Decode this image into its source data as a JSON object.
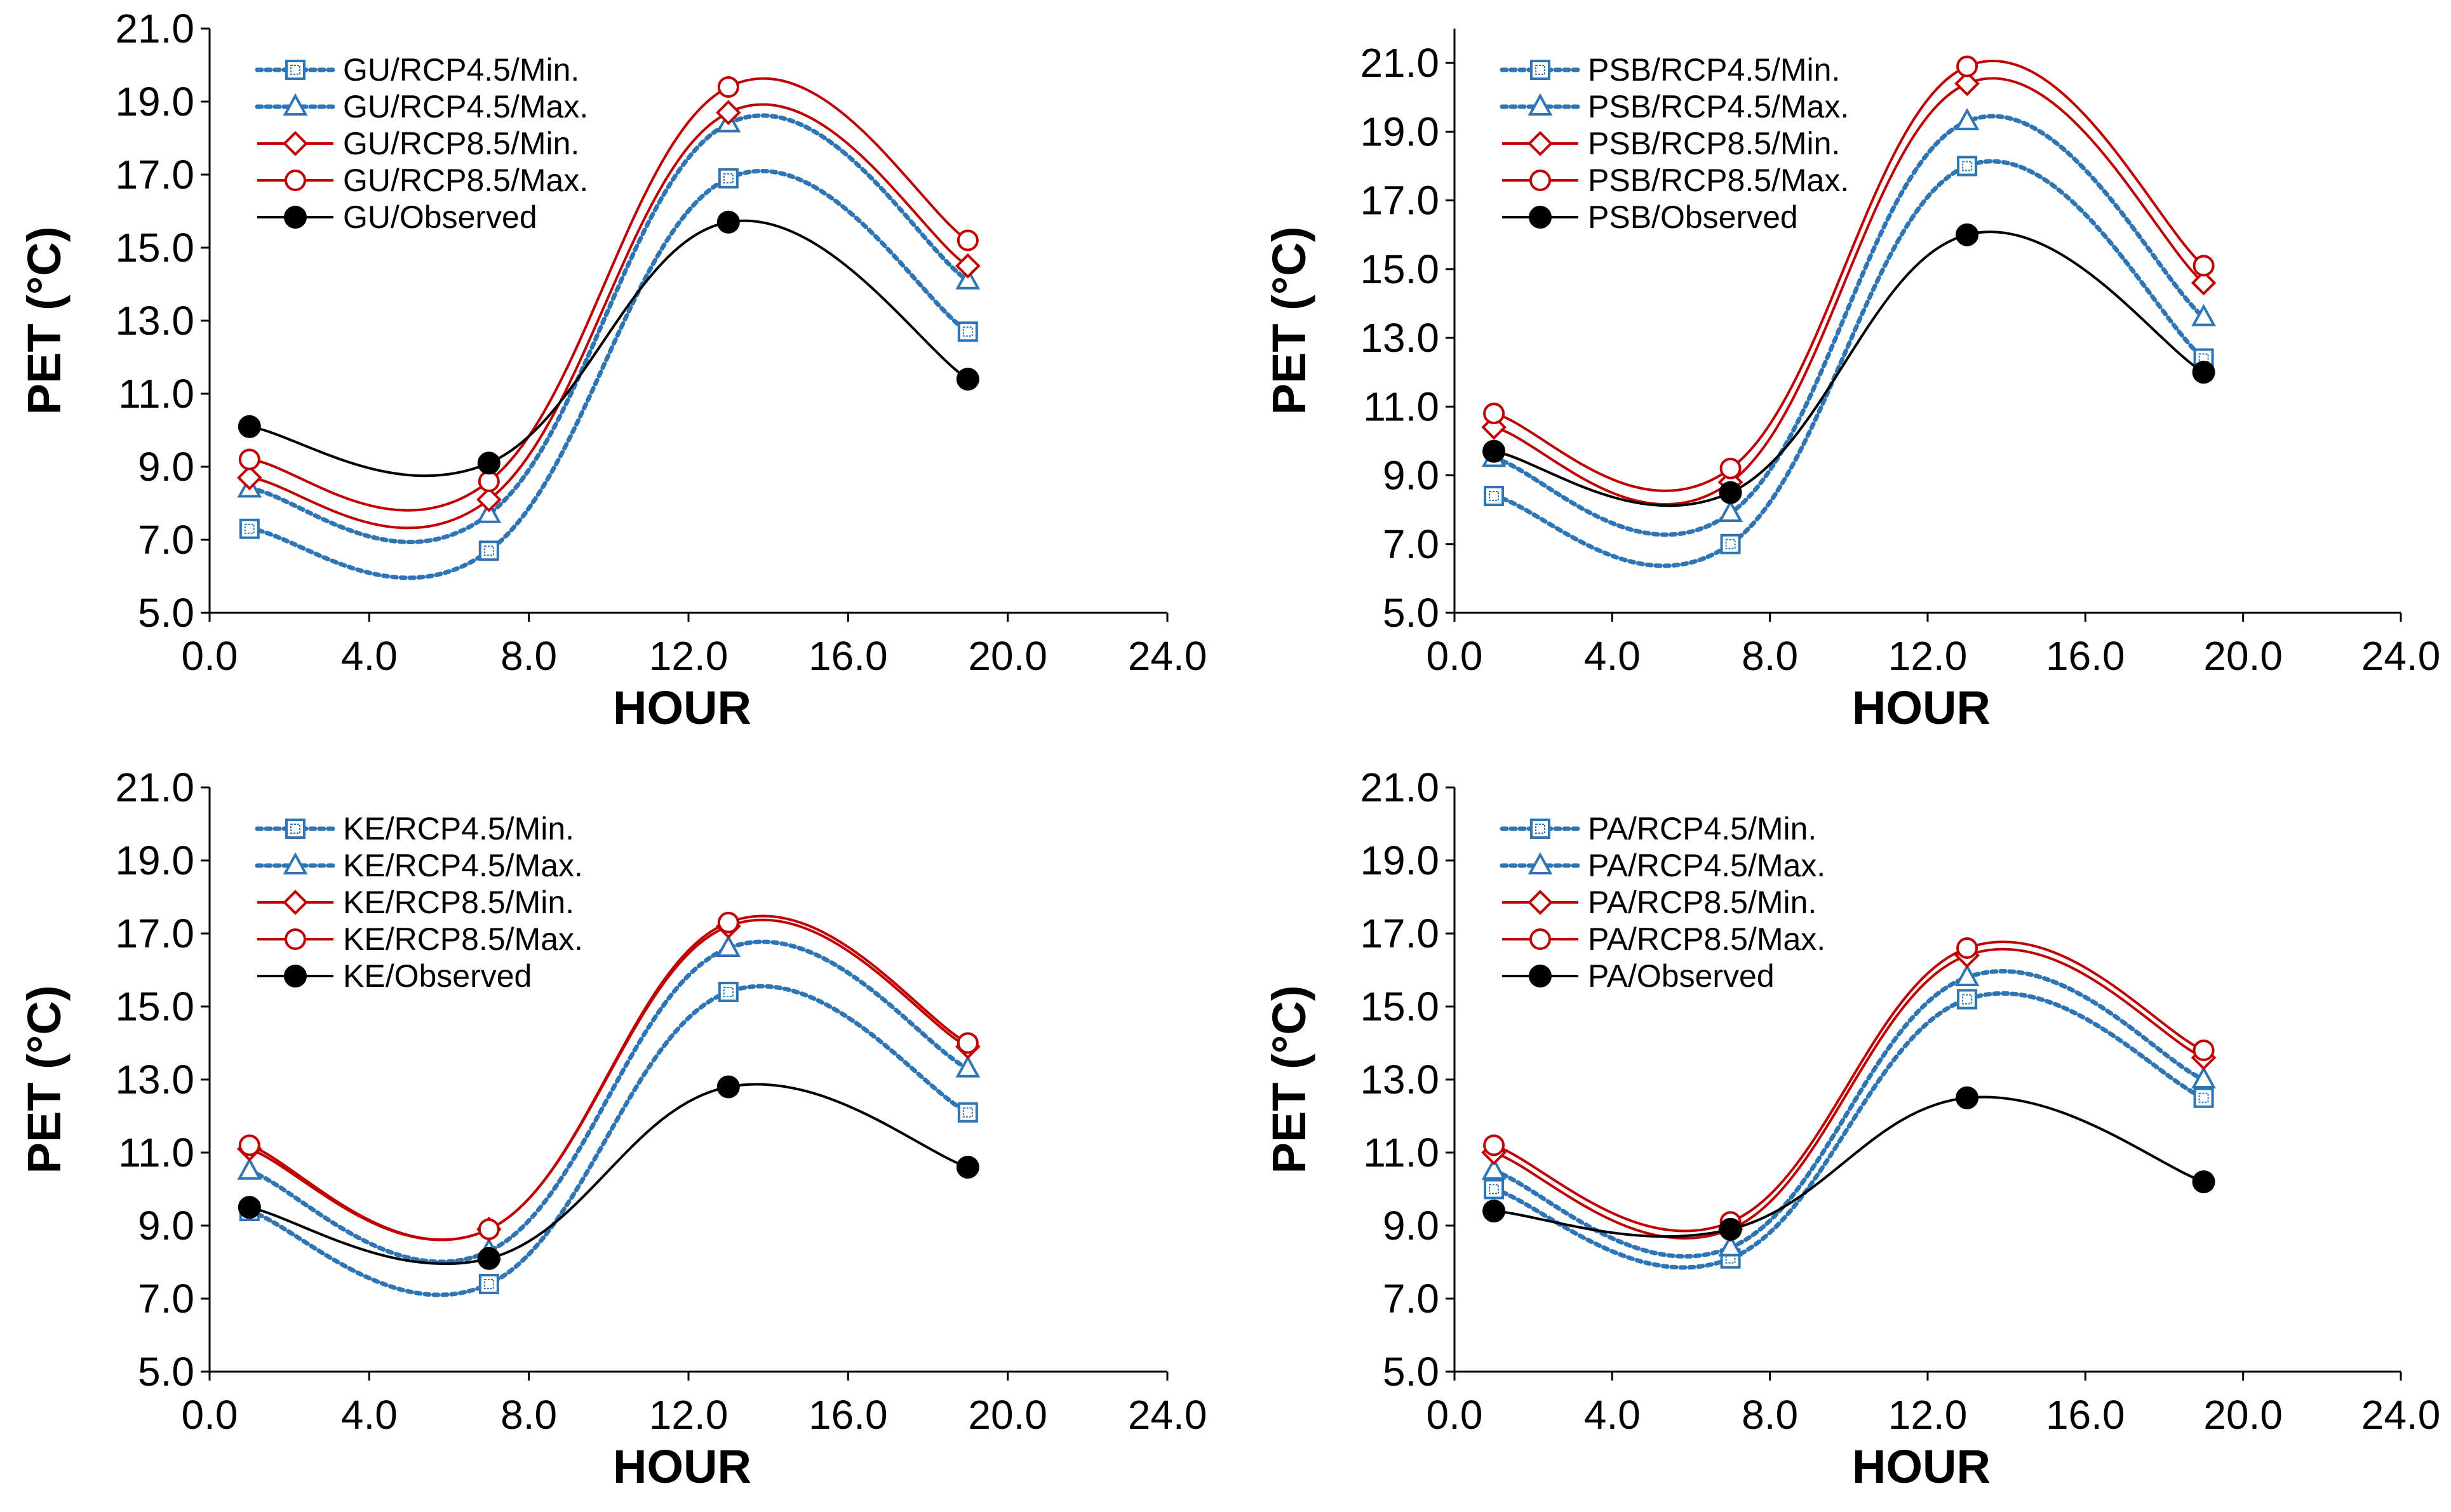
{
  "colors": {
    "rcp45": "#2E75B6",
    "rcp85": "#C00000",
    "observed": "#000000"
  },
  "chart_data": [
    {
      "type": "line",
      "panel": "GU",
      "xlabel": "HOUR",
      "ylabel": "PET (°C)",
      "xlim": [
        0,
        24
      ],
      "ylim": [
        5,
        21
      ],
      "xticks": [
        "0.0",
        "4.0",
        "8.0",
        "12.0",
        "16.0",
        "20.0",
        "24.0"
      ],
      "yticks": [
        "5.0",
        "7.0",
        "9.0",
        "11.0",
        "13.0",
        "15.0",
        "17.0",
        "19.0",
        "21.0"
      ],
      "legend_position": "top-left",
      "x": [
        1,
        7,
        13,
        19
      ],
      "series": [
        {
          "name": "GU/RCP4.5/Min.",
          "values": [
            7.3,
            6.7,
            16.9,
            12.7
          ],
          "style": "rcp45",
          "marker": "square"
        },
        {
          "name": "GU/RCP4.5/Max.",
          "values": [
            8.4,
            7.7,
            18.4,
            14.1
          ],
          "style": "rcp45",
          "marker": "triangle"
        },
        {
          "name": "GU/RCP8.5/Min.",
          "values": [
            8.7,
            8.1,
            18.7,
            14.5
          ],
          "style": "rcp85",
          "marker": "diamond"
        },
        {
          "name": "GU/RCP8.5/Max.",
          "values": [
            9.2,
            8.6,
            19.4,
            15.2
          ],
          "style": "rcp85",
          "marker": "circle"
        },
        {
          "name": "GU/Observed",
          "values": [
            10.1,
            9.1,
            15.7,
            11.4
          ],
          "style": "observed",
          "marker": "filled-circle"
        }
      ]
    },
    {
      "type": "line",
      "panel": "PSB",
      "xlabel": "HOUR",
      "ylabel": "PET (°C)",
      "xlim": [
        0,
        24
      ],
      "ylim": [
        5,
        22
      ],
      "xticks": [
        "0.0",
        "4.0",
        "8.0",
        "12.0",
        "16.0",
        "20.0",
        "24.0"
      ],
      "yticks": [
        "5.0",
        "7.0",
        "9.0",
        "11.0",
        "13.0",
        "15.0",
        "17.0",
        "19.0",
        "21.0"
      ],
      "legend_position": "top-left",
      "x": [
        1,
        7,
        13,
        19
      ],
      "series": [
        {
          "name": "PSB/RCP4.5/Min.",
          "values": [
            8.4,
            7.0,
            18.0,
            12.4
          ],
          "style": "rcp45",
          "marker": "square"
        },
        {
          "name": "PSB/RCP4.5/Max.",
          "values": [
            9.5,
            7.9,
            19.3,
            13.6
          ],
          "style": "rcp45",
          "marker": "triangle"
        },
        {
          "name": "PSB/RCP8.5/Min.",
          "values": [
            10.4,
            8.8,
            20.4,
            14.6
          ],
          "style": "rcp85",
          "marker": "diamond"
        },
        {
          "name": "PSB/RCP8.5/Max.",
          "values": [
            10.8,
            9.2,
            20.9,
            15.1
          ],
          "style": "rcp85",
          "marker": "circle"
        },
        {
          "name": "PSB/Observed",
          "values": [
            9.7,
            8.5,
            16.0,
            12.0
          ],
          "style": "observed",
          "marker": "filled-circle"
        }
      ]
    },
    {
      "type": "line",
      "panel": "KE",
      "xlabel": "HOUR",
      "ylabel": "PET (°C)",
      "xlim": [
        0,
        24
      ],
      "ylim": [
        5,
        21
      ],
      "xticks": [
        "0.0",
        "4.0",
        "8.0",
        "12.0",
        "16.0",
        "20.0",
        "24.0"
      ],
      "yticks": [
        "5.0",
        "7.0",
        "9.0",
        "11.0",
        "13.0",
        "15.0",
        "17.0",
        "19.0",
        "21.0"
      ],
      "legend_position": "top-left",
      "x": [
        1,
        7,
        13,
        19
      ],
      "series": [
        {
          "name": "KE/RCP4.5/Min.",
          "values": [
            9.4,
            7.4,
            15.4,
            12.1
          ],
          "style": "rcp45",
          "marker": "square"
        },
        {
          "name": "KE/RCP4.5/Max.",
          "values": [
            10.5,
            8.3,
            16.6,
            13.3
          ],
          "style": "rcp45",
          "marker": "triangle"
        },
        {
          "name": "KE/RCP8.5/Min.",
          "values": [
            11.1,
            8.9,
            17.2,
            13.9
          ],
          "style": "rcp85",
          "marker": "diamond"
        },
        {
          "name": "KE/RCP8.5/Max.",
          "values": [
            11.2,
            8.9,
            17.3,
            14.0
          ],
          "style": "rcp85",
          "marker": "circle"
        },
        {
          "name": "KE/Observed",
          "values": [
            9.5,
            8.1,
            12.8,
            10.6
          ],
          "style": "observed",
          "marker": "filled-circle"
        }
      ]
    },
    {
      "type": "line",
      "panel": "PA",
      "xlabel": "HOUR",
      "ylabel": "PET (°C)",
      "xlim": [
        0,
        24
      ],
      "ylim": [
        5,
        21
      ],
      "xticks": [
        "0.0",
        "4.0",
        "8.0",
        "12.0",
        "16.0",
        "20.0",
        "24.0"
      ],
      "yticks": [
        "5.0",
        "7.0",
        "9.0",
        "11.0",
        "13.0",
        "15.0",
        "17.0",
        "19.0",
        "21.0"
      ],
      "legend_position": "top-left",
      "x": [
        1,
        7,
        13,
        19
      ],
      "series": [
        {
          "name": "PA/RCP4.5/Min.",
          "values": [
            10.0,
            8.1,
            15.2,
            12.5
          ],
          "style": "rcp45",
          "marker": "square"
        },
        {
          "name": "PA/RCP4.5/Max.",
          "values": [
            10.5,
            8.4,
            15.8,
            13.0
          ],
          "style": "rcp45",
          "marker": "triangle"
        },
        {
          "name": "PA/RCP8.5/Min.",
          "values": [
            11.0,
            8.9,
            16.4,
            13.6
          ],
          "style": "rcp85",
          "marker": "diamond"
        },
        {
          "name": "PA/RCP8.5/Max.",
          "values": [
            11.2,
            9.1,
            16.6,
            13.8
          ],
          "style": "rcp85",
          "marker": "circle"
        },
        {
          "name": "PA/Observed",
          "values": [
            9.4,
            8.9,
            12.5,
            10.2
          ],
          "style": "observed",
          "marker": "filled-circle"
        }
      ]
    }
  ]
}
